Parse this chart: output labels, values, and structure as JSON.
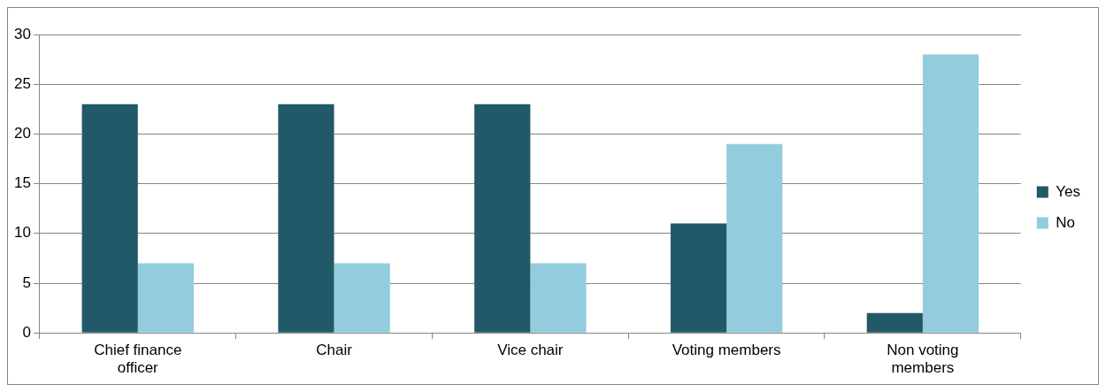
{
  "chart_data": {
    "type": "bar",
    "categories": [
      "Chief finance officer",
      "Chair",
      "Vice chair",
      "Voting members",
      "Non voting members"
    ],
    "series": [
      {
        "name": "Yes",
        "color": "#215968",
        "values": [
          23,
          23,
          23,
          11,
          2
        ]
      },
      {
        "name": "No",
        "color": "#93cddd",
        "values": [
          7,
          7,
          7,
          19,
          28
        ]
      }
    ],
    "ylim": [
      0,
      30
    ],
    "yticks": [
      0,
      5,
      10,
      15,
      20,
      25,
      30
    ],
    "grid": "y",
    "legend": "right"
  }
}
